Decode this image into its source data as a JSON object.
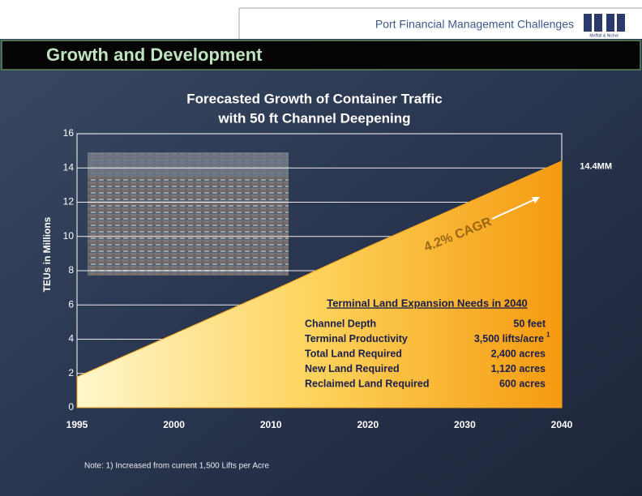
{
  "header": {
    "title": "Port Financial Management Challenges",
    "logo_text": "Moffatt & Nichol"
  },
  "slide_title": "Growth and Development",
  "chart_data": {
    "type": "area",
    "title": "Forecasted Growth of Container Traffic",
    "subtitle": "with 50 ft Channel Deepening",
    "y_label": "TEUs in Millions",
    "categories": [
      "1995",
      "2000",
      "2010",
      "2020",
      "2030",
      "2040"
    ],
    "values": [
      1.8,
      4.3,
      6.8,
      9.4,
      11.9,
      14.4
    ],
    "value_labels": [
      null,
      null,
      null,
      null,
      null,
      "14.4MM"
    ],
    "ylim": [
      0,
      16
    ],
    "yticks": [
      0,
      2,
      4,
      6,
      8,
      10,
      12,
      14,
      16
    ],
    "grid": true,
    "color": "#f7a21b",
    "annotation": "4.2% CAGR"
  },
  "table": {
    "title": "Terminal Land Expansion Needs in 2040",
    "rows": [
      [
        "Channel Depth",
        "50 feet"
      ],
      [
        "Terminal Productivity",
        "3,500 lifts/acre",
        "1"
      ],
      [
        "Total Land Required",
        "2,400 acres"
      ],
      [
        "New Land Required",
        "1,120 acres"
      ],
      [
        "Reclaimed Land Required",
        "600 acres"
      ]
    ]
  },
  "note": "Note: 1) Increased from current 1,500 Lifts per Acre"
}
